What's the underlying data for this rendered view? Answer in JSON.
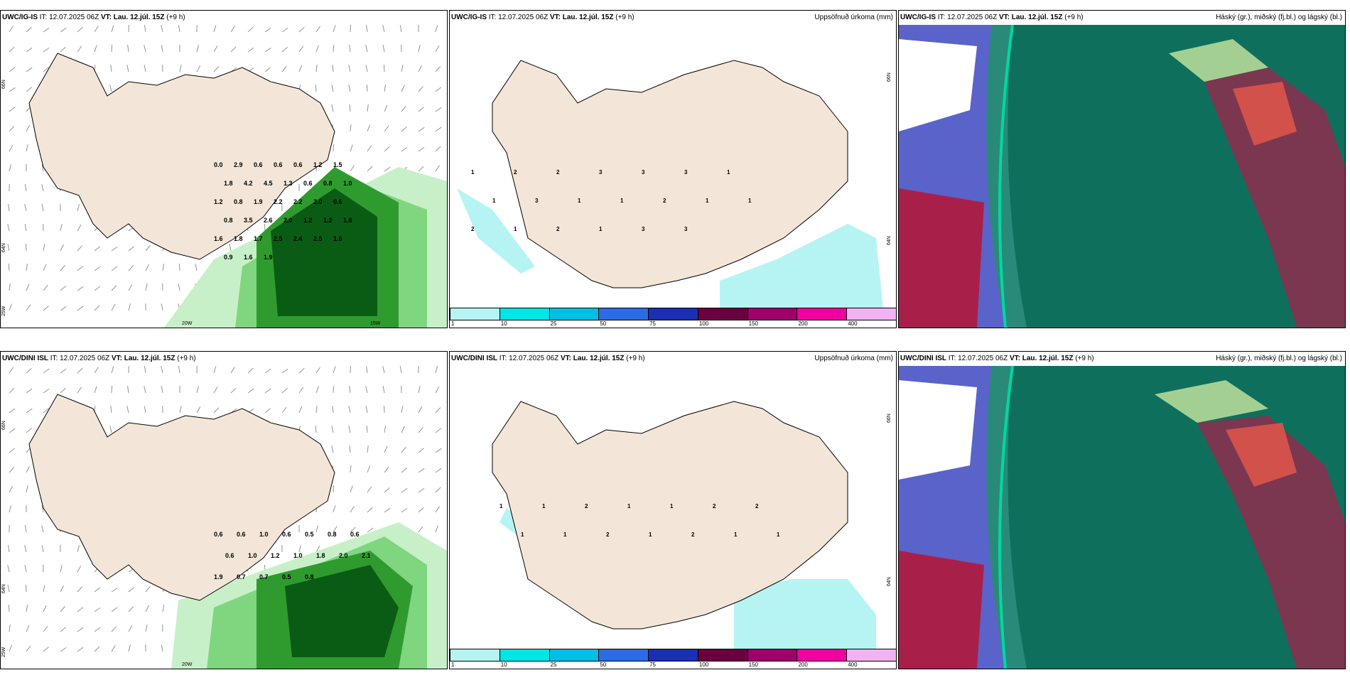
{
  "colors": {
    "land": "#f3e6d8",
    "ocean_precip_light": "#b6f4f4",
    "green_1": "#c8f0c8",
    "green_2": "#7fd67f",
    "green_3": "#2f9b2f",
    "green_4": "#0a5c14",
    "cloud_high": "#5a63c9",
    "cloud_mid": "#0c6b5a",
    "cloud_low": "#a8204a",
    "cloud_mix": "#2a8a7a"
  },
  "rows": [
    {
      "model": "UWC/IG-IS",
      "it_label": "IT:",
      "it_value": "12.07.2025 06Z",
      "vt_label": "VT:",
      "vt_value": "Lau. 12.júl. 15Z",
      "lead": "(+9 h)",
      "precip_title": "Uppsöfnuð úrkoma (mm)",
      "cloud_title": "Háský (gr.), miðský (fj.bl.) og lágský (bl.)",
      "lat_labels": [
        "66N",
        "64N",
        "25W"
      ],
      "lon_labels": [
        "20W",
        "15W"
      ],
      "precip_lat_labels": [
        "66N",
        "64N"
      ],
      "wind_values": [
        "0.0",
        "2.9",
        "0.6",
        "0.6",
        "0.6",
        "1.2",
        "1.5",
        "1.8",
        "4.2",
        "4.5",
        "1.3",
        "0.6",
        "0.8",
        "1.0",
        "1.2",
        "0.8",
        "1.9",
        "2.2",
        "2.2",
        "2.0",
        "0.6",
        "0.8",
        "3.5",
        "2.6",
        "2.0",
        "1.2",
        "1.2",
        "1.8",
        "1.6",
        "1.8",
        "1.7",
        "2.5",
        "2.4",
        "2.5",
        "1.6",
        "0.9",
        "1.6",
        "1.9"
      ],
      "precip_values": [
        "1",
        "2",
        "2",
        "3",
        "3",
        "3",
        "1",
        "1",
        "3",
        "1",
        "1",
        "2",
        "1",
        "1",
        "2",
        "1",
        "2",
        "1",
        "3",
        "3"
      ]
    },
    {
      "model": "UWC/DINI ISL",
      "it_label": "IT:",
      "it_value": "12.07.2025 06Z",
      "vt_label": "VT:",
      "vt_value": "Lau. 12.júl. 15Z",
      "lead": "(+9 h)",
      "precip_title": "Uppsöfnuð úrkoma (mm)",
      "cloud_title": "Háský (gr.), miðský (fj.bl.) og lágský (bl.)",
      "lat_labels": [
        "66N",
        "64N",
        "25W"
      ],
      "lon_labels": [
        "20W"
      ],
      "precip_lat_labels": [
        "66N",
        "64N"
      ],
      "wind_values": [
        "0.6",
        "0.6",
        "1.0",
        "0.6",
        "0.5",
        "0.8",
        "0.6",
        "0.6",
        "1.0",
        "1.2",
        "1.0",
        "1.8",
        "2.0",
        "2.1",
        "1.9",
        "0.7",
        "0.7",
        "0.5",
        "0.8"
      ],
      "precip_values": [
        "1",
        "1",
        "2",
        "1",
        "1",
        "2",
        "2",
        "1",
        "1",
        "2",
        "1",
        "2",
        "1",
        "1"
      ]
    }
  ],
  "colorbar": {
    "ticks": [
      "1",
      "10",
      "25",
      "50",
      "75",
      "100",
      "150",
      "200",
      "400"
    ],
    "colors": [
      "#b6f4f4",
      "#00e5e5",
      "#00bfe6",
      "#2b6ce6",
      "#1a2fb3",
      "#6b0040",
      "#a0006b",
      "#f000a0",
      "#f2b3f2"
    ]
  }
}
